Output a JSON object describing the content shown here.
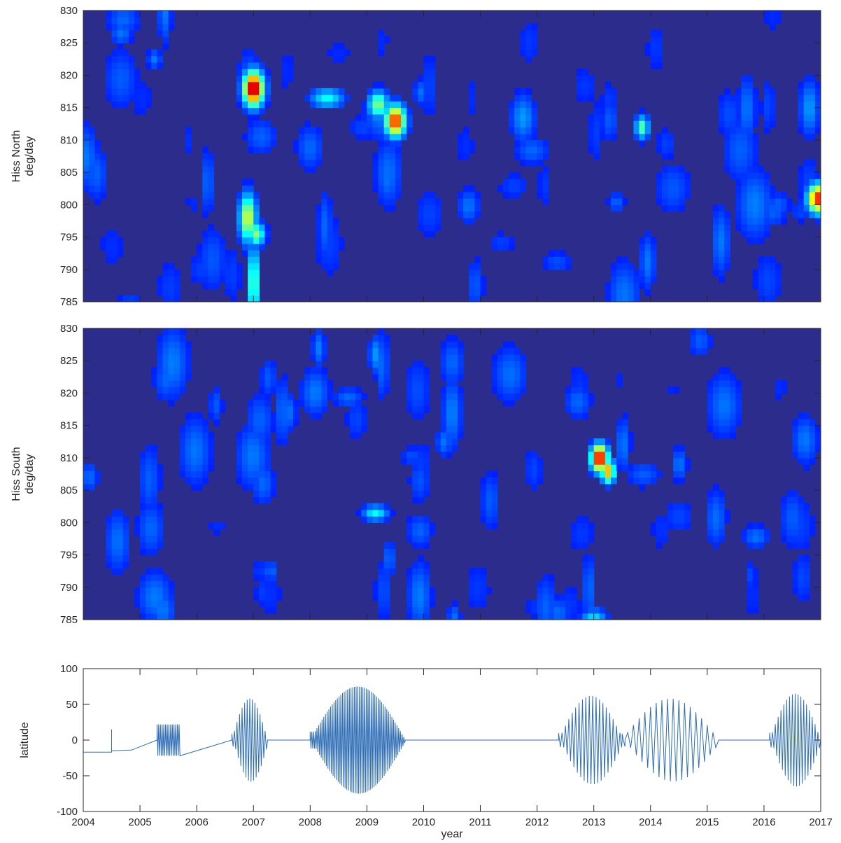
{
  "chart_data": [
    {
      "type": "heatmap",
      "panel": "top",
      "ylabel": [
        "Hiss North",
        "deg/day"
      ],
      "xlim": [
        2004,
        2017
      ],
      "ylim": [
        785,
        830
      ],
      "yticks": [
        785,
        790,
        795,
        800,
        805,
        810,
        815,
        820,
        825,
        830
      ],
      "xticks": [
        2004,
        2005,
        2006,
        2007,
        2008,
        2009,
        2010,
        2011,
        2012,
        2013,
        2014,
        2015,
        2016,
        2017
      ],
      "show_xtick_labels": false,
      "colormap": "jet",
      "background_color": "#2b2c8c",
      "hotspots": [
        {
          "x": 2007.0,
          "y": 818,
          "intensity": 1.0,
          "sx": 0.12,
          "sy": 1.8
        },
        {
          "x": 2009.5,
          "y": 813,
          "intensity": 0.85,
          "sx": 0.12,
          "sy": 1.6
        },
        {
          "x": 2009.2,
          "y": 815.5,
          "intensity": 0.45,
          "sx": 0.12,
          "sy": 1.4
        },
        {
          "x": 2008.3,
          "y": 816.5,
          "intensity": 0.3,
          "sx": 0.2,
          "sy": 1.0
        },
        {
          "x": 2006.9,
          "y": 798,
          "intensity": 0.55,
          "sx": 0.1,
          "sy": 2.5
        },
        {
          "x": 2007.05,
          "y": 795.5,
          "intensity": 0.45,
          "sx": 0.1,
          "sy": 1.2
        },
        {
          "x": 2007.0,
          "y": 788,
          "intensity": 0.45,
          "sx": 0.06,
          "sy": 4.0
        },
        {
          "x": 2016.95,
          "y": 801,
          "intensity": 0.85,
          "sx": 0.12,
          "sy": 1.5
        },
        {
          "x": 2013.85,
          "y": 812,
          "intensity": 0.4,
          "sx": 0.08,
          "sy": 1.2
        },
        {
          "x": 2011.75,
          "y": 813.5,
          "intensity": 0.18,
          "sx": 0.15,
          "sy": 2.5
        },
        {
          "x": 2016.8,
          "y": 815,
          "intensity": 0.18,
          "sx": 0.12,
          "sy": 3.0
        }
      ]
    },
    {
      "type": "heatmap",
      "panel": "middle",
      "ylabel": [
        "Hiss South",
        "deg/day"
      ],
      "xlim": [
        2004,
        2017
      ],
      "ylim": [
        785,
        830
      ],
      "yticks": [
        785,
        790,
        795,
        800,
        805,
        810,
        815,
        820,
        825,
        830
      ],
      "xticks": [
        2004,
        2005,
        2006,
        2007,
        2008,
        2009,
        2010,
        2011,
        2012,
        2013,
        2014,
        2015,
        2016,
        2017
      ],
      "show_xtick_labels": false,
      "colormap": "jet",
      "background_color": "#2b2c8c",
      "hotspots": [
        {
          "x": 2013.1,
          "y": 810,
          "intensity": 0.95,
          "sx": 0.1,
          "sy": 1.4
        },
        {
          "x": 2013.25,
          "y": 808,
          "intensity": 0.7,
          "sx": 0.08,
          "sy": 1.2
        },
        {
          "x": 2009.15,
          "y": 801.5,
          "intensity": 0.3,
          "sx": 0.15,
          "sy": 0.8
        },
        {
          "x": 2013.0,
          "y": 785.5,
          "intensity": 0.25,
          "sx": 0.15,
          "sy": 0.8
        },
        {
          "x": 2008.15,
          "y": 827,
          "intensity": 0.15,
          "sx": 0.08,
          "sy": 2.0
        },
        {
          "x": 2009.15,
          "y": 826,
          "intensity": 0.18,
          "sx": 0.08,
          "sy": 2.0
        },
        {
          "x": 2010.5,
          "y": 817,
          "intensity": 0.15,
          "sx": 0.12,
          "sy": 4.0
        }
      ]
    },
    {
      "type": "line",
      "panel": "bottom",
      "xlabel": "year",
      "ylabel": "latitude",
      "xlim": [
        2004,
        2017
      ],
      "ylim": [
        -100,
        100
      ],
      "yticks": [
        -100,
        -50,
        0,
        50,
        100
      ],
      "xticks": [
        2004,
        2005,
        2006,
        2007,
        2008,
        2009,
        2010,
        2011,
        2012,
        2013,
        2014,
        2015,
        2016,
        2017
      ],
      "line_color": "#2f6eb5",
      "segments": [
        {
          "kind": "flat",
          "x": [
            2004.0,
            2004.5
          ],
          "y": -17
        },
        {
          "kind": "spike",
          "x": 2004.5,
          "y": 15
        },
        {
          "kind": "flat",
          "x": [
            2004.5,
            2004.85
          ],
          "y": -14
        },
        {
          "kind": "osc",
          "x": [
            2005.3,
            2005.68
          ],
          "amp": 22,
          "period": 0.03
        },
        {
          "kind": "osc",
          "x": [
            2006.62,
            2007.25
          ],
          "amp_max": 58,
          "period": 0.045
        },
        {
          "kind": "osc",
          "x": [
            2008.0,
            2009.68
          ],
          "amp_max": 75,
          "period": 0.03
        },
        {
          "kind": "osc",
          "x": [
            2012.38,
            2013.5
          ],
          "amp_max": 62,
          "period": 0.06
        },
        {
          "kind": "osc",
          "x": [
            2013.5,
            2015.2
          ],
          "amp_max": 58,
          "period": 0.1
        },
        {
          "kind": "osc",
          "x": [
            2016.1,
            2017.0
          ],
          "amp_max": 65,
          "period": 0.05
        }
      ]
    }
  ]
}
